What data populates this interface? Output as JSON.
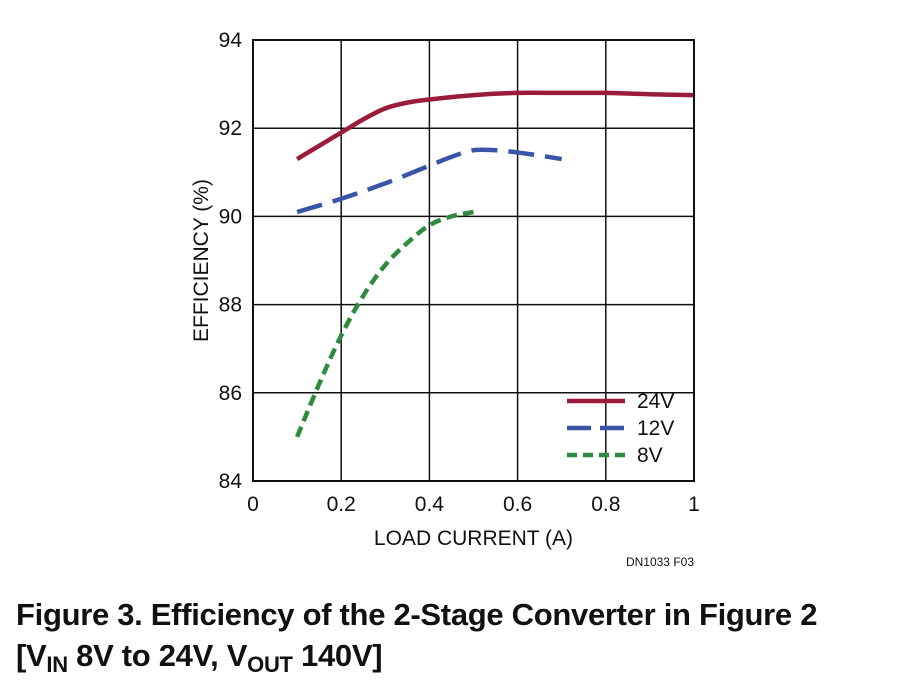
{
  "chart_data": {
    "type": "line",
    "xlabel": "LOAD CURRENT (A)",
    "ylabel": "EFFICIENCY (%)",
    "xlim": [
      0,
      1
    ],
    "ylim": [
      84,
      94
    ],
    "xticks": [
      0,
      0.2,
      0.4,
      0.6,
      0.8,
      1
    ],
    "xtick_labels": [
      "0",
      "0.2",
      "0.4",
      "0.6",
      "0.8",
      "1"
    ],
    "yticks": [
      84,
      86,
      88,
      90,
      92,
      94
    ],
    "ytick_labels": [
      "84",
      "86",
      "88",
      "90",
      "92",
      "94"
    ],
    "grid": true,
    "legend_position": "bottom-right",
    "series": [
      {
        "name": "24V",
        "color": "#9b1b3a",
        "style": "solid",
        "x": [
          0.1,
          0.15,
          0.2,
          0.25,
          0.3,
          0.35,
          0.4,
          0.5,
          0.6,
          0.7,
          0.8,
          0.9,
          1.0
        ],
        "y": [
          91.3,
          91.6,
          91.9,
          92.2,
          92.45,
          92.58,
          92.65,
          92.75,
          92.8,
          92.8,
          92.8,
          92.77,
          92.75
        ]
      },
      {
        "name": "12V",
        "color": "#3a55a8",
        "style": "long-dash",
        "x": [
          0.1,
          0.2,
          0.3,
          0.4,
          0.45,
          0.5,
          0.55,
          0.6,
          0.65,
          0.7
        ],
        "y": [
          90.1,
          90.4,
          90.75,
          91.15,
          91.35,
          91.5,
          91.5,
          91.45,
          91.38,
          91.3
        ]
      },
      {
        "name": "8V",
        "color": "#2e8b3e",
        "style": "short-dash",
        "x": [
          0.1,
          0.15,
          0.2,
          0.25,
          0.3,
          0.35,
          0.4,
          0.45,
          0.5
        ],
        "y": [
          85.0,
          86.2,
          87.3,
          88.2,
          88.9,
          89.4,
          89.8,
          90.0,
          90.1
        ]
      }
    ]
  },
  "figure_id": "DN1033 F03",
  "caption": {
    "line1": "Figure 3. Efficiency of the 2-Stage Converter in Figure 2",
    "line2_open": "[V",
    "line2_sub1": "IN",
    "line2_mid": " 8V to 24V, V",
    "line2_sub2": "OUT",
    "line2_close": " 140V]"
  }
}
